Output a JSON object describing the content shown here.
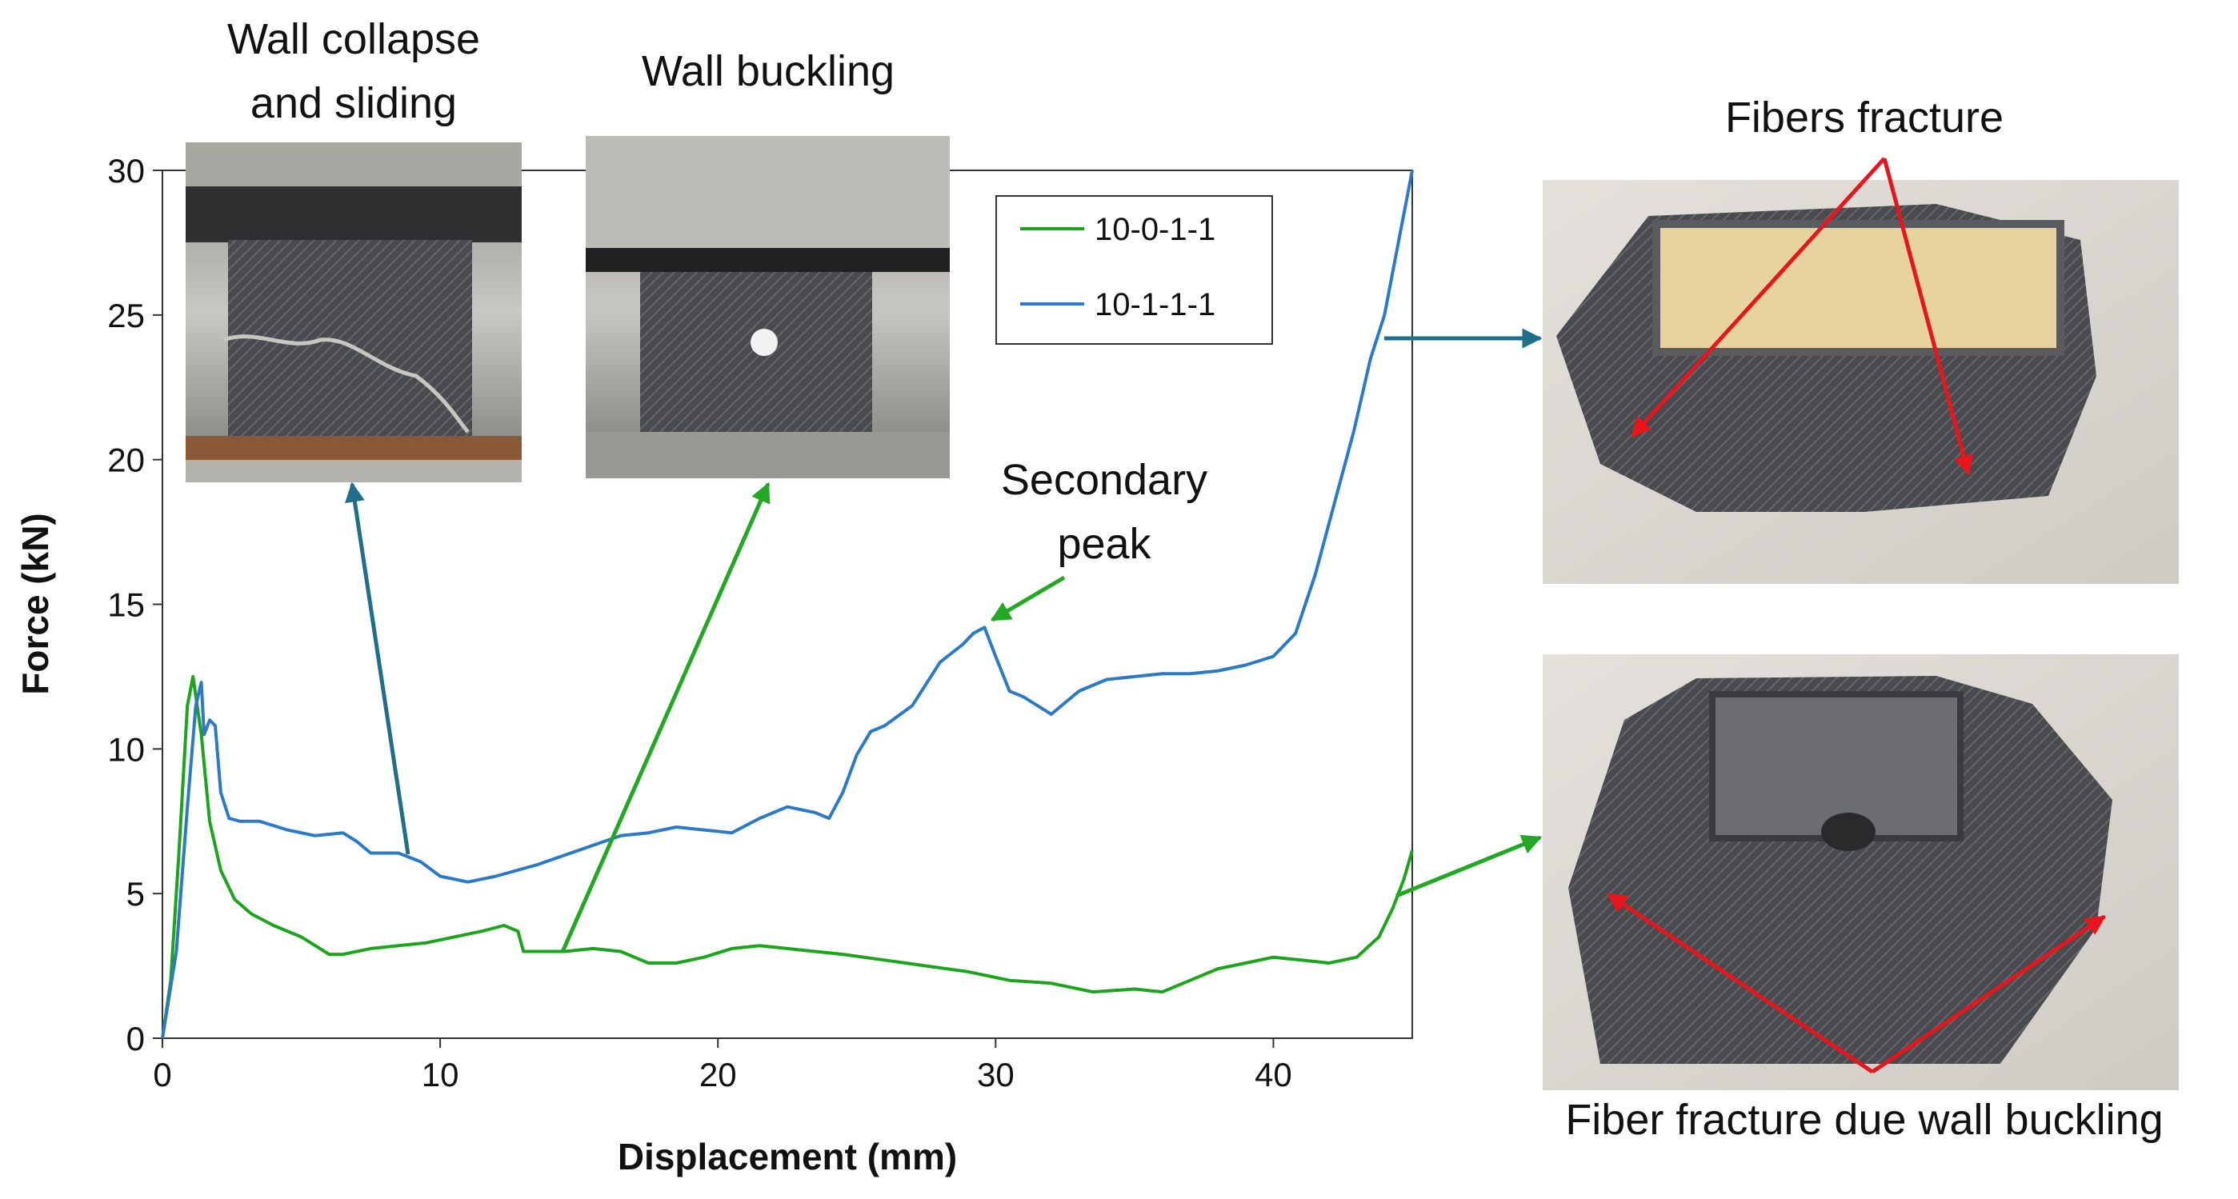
{
  "chart_data": {
    "type": "line",
    "xlabel": "Displacement (mm)",
    "ylabel": "Force (kN)",
    "xlim": [
      0,
      45
    ],
    "ylim": [
      0,
      30
    ],
    "x_ticks": [
      "0",
      "10",
      "20",
      "30",
      "40"
    ],
    "y_ticks": [
      "0",
      "5",
      "10",
      "15",
      "20",
      "25",
      "30"
    ],
    "grid": false,
    "legend_position": "top-right",
    "series": [
      {
        "name": "10-0-1-1",
        "color": "#1aa51a",
        "x": [
          0,
          0.3,
          0.6,
          0.9,
          1.1,
          1.4,
          1.7,
          2.1,
          2.6,
          3.2,
          4.0,
          5.0,
          6.0,
          6.5,
          7.5,
          8.5,
          9.5,
          10.5,
          11.5,
          12.3,
          12.8,
          13.0,
          13.5,
          14.5,
          15.5,
          16.5,
          17.5,
          18.5,
          19.5,
          20.5,
          21.5,
          22.5,
          23.5,
          24.5,
          26.0,
          27.5,
          29.0,
          30.5,
          32.0,
          33.5,
          35.0,
          36.0,
          37.0,
          38.0,
          39.0,
          40.0,
          41.0,
          42.0,
          43.0,
          43.8,
          44.3,
          44.7,
          45.0
        ],
        "y": [
          0,
          2.0,
          6.5,
          11.5,
          12.5,
          10.5,
          7.5,
          5.8,
          4.8,
          4.3,
          3.9,
          3.5,
          2.9,
          2.9,
          3.1,
          3.2,
          3.3,
          3.5,
          3.7,
          3.9,
          3.7,
          3.0,
          3.0,
          3.0,
          3.1,
          3.0,
          2.6,
          2.6,
          2.8,
          3.1,
          3.2,
          3.1,
          3.0,
          2.9,
          2.7,
          2.5,
          2.3,
          2.0,
          1.9,
          1.6,
          1.7,
          1.6,
          2.0,
          2.4,
          2.6,
          2.8,
          2.7,
          2.6,
          2.8,
          3.5,
          4.5,
          5.5,
          6.5
        ]
      },
      {
        "name": "10-1-1-1",
        "color": "#2a7ac8",
        "x": [
          0,
          0.5,
          0.9,
          1.2,
          1.4,
          1.5,
          1.7,
          1.9,
          2.1,
          2.4,
          2.8,
          3.5,
          4.5,
          5.5,
          6.5,
          7.0,
          7.5,
          8.5,
          9.3,
          10.0,
          11.0,
          12.0,
          13.5,
          15.0,
          16.5,
          17.5,
          18.5,
          19.5,
          20.5,
          21.5,
          22.5,
          23.5,
          24.0,
          24.5,
          25.0,
          25.5,
          26.0,
          27.0,
          28.0,
          28.8,
          29.2,
          29.6,
          30.0,
          30.5,
          31.0,
          32.0,
          33.0,
          34.0,
          35.0,
          36.0,
          37.0,
          38.0,
          39.0,
          40.0,
          40.8,
          41.5,
          42.2,
          42.9,
          43.5,
          44.0,
          44.5,
          45.0
        ],
        "y": [
          0,
          3.0,
          8.0,
          11.5,
          12.3,
          10.5,
          11.0,
          10.8,
          8.5,
          7.6,
          7.5,
          7.5,
          7.2,
          7.0,
          7.1,
          6.8,
          6.4,
          6.4,
          6.1,
          5.6,
          5.4,
          5.6,
          6.0,
          6.5,
          7.0,
          7.1,
          7.3,
          7.2,
          7.1,
          7.6,
          8.0,
          7.8,
          7.6,
          8.5,
          9.8,
          10.6,
          10.8,
          11.5,
          13.0,
          13.6,
          14.0,
          14.2,
          13.2,
          12.0,
          11.8,
          11.2,
          12.0,
          12.4,
          12.5,
          12.6,
          12.6,
          12.7,
          12.9,
          13.2,
          14.0,
          16.0,
          18.5,
          21.0,
          23.5,
          25.0,
          27.5,
          30.0
        ]
      }
    ],
    "annotations": {
      "photo1_caption_line1": "Wall collapse",
      "photo1_caption_line2": "and sliding",
      "photo2_caption": "Wall buckling",
      "secondary_peak_line1": "Secondary",
      "secondary_peak_line2": "peak",
      "fibers_fracture": "Fibers fracture",
      "fiber_fracture_buckling": "Fiber fracture due wall buckling"
    }
  },
  "colors": {
    "green_series": "#1aa51a",
    "blue_series": "#2a7ac8",
    "blue_arrow": "#1f6e8c",
    "green_arrow": "#22a822",
    "red_arrow": "#e8161c"
  }
}
